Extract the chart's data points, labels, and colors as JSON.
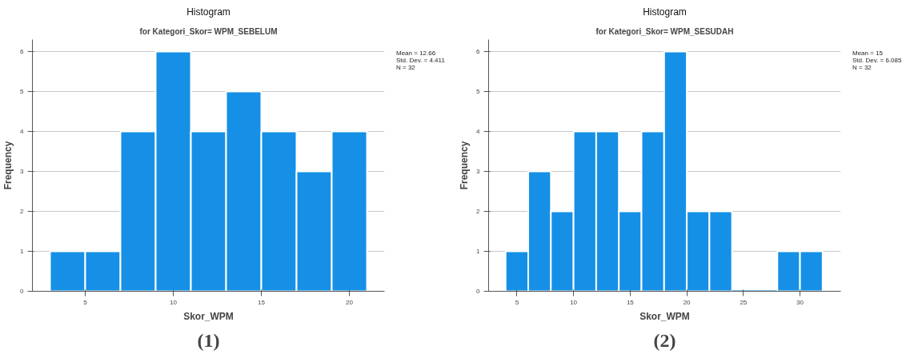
{
  "chart_data": [
    {
      "type": "histogram",
      "title": "Histogram",
      "subtitle": "for Kategori_Skor= WPM_SEBELUM",
      "xlabel": "Skor_WPM",
      "ylabel": "Frequency",
      "bins": [
        3,
        5,
        7,
        9,
        11,
        13,
        15,
        17,
        19,
        21
      ],
      "values": [
        1,
        1,
        4,
        6,
        4,
        5,
        4,
        3,
        4
      ],
      "color": "#1590e6",
      "xlim": [
        2,
        22
      ],
      "xticks": [
        5,
        10,
        15,
        20
      ],
      "ylim": [
        0,
        6.3
      ],
      "yticks": [
        0,
        1,
        2,
        3,
        4,
        5,
        6
      ],
      "grid": "y",
      "annotations": [
        "Mean = 12.66",
        "Std. Dev. = 4.411",
        "N = 32",
        "(1)"
      ]
    },
    {
      "type": "histogram",
      "title": "Histogram",
      "subtitle": "for Kategori_Skor= WPM_SESUDAH",
      "xlabel": "Skor_WPM",
      "ylabel": "Frequency",
      "bins": [
        4,
        6,
        8,
        10,
        12,
        14,
        16,
        18,
        20,
        22,
        24,
        26,
        28,
        30,
        32
      ],
      "values": [
        1,
        3,
        2,
        4,
        4,
        2,
        4,
        6,
        2,
        2,
        0,
        0,
        1,
        1
      ],
      "color": "#1590e6",
      "xlim": [
        2.5,
        33.6
      ],
      "xticks": [
        5,
        10,
        15,
        20,
        25,
        30
      ],
      "ylim": [
        0,
        6.3
      ],
      "yticks": [
        0,
        1,
        2,
        3,
        4,
        5,
        6
      ],
      "grid": "y",
      "annotations": [
        "Mean = 15",
        "Std. Dev. = 6.085",
        "N = 32",
        "(2)"
      ]
    }
  ]
}
